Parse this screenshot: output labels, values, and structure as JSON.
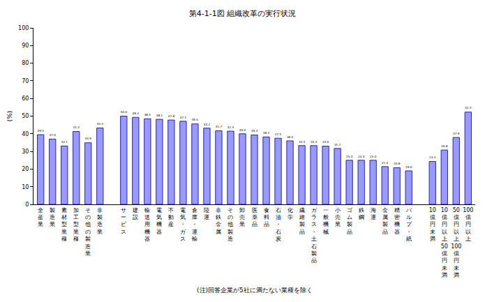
{
  "chart_data": {
    "type": "bar",
    "title": "第4-1-1図 組織改革の実行状況",
    "y_label": "(%)",
    "annotations": [
      "(注)回答企業が5社に満たない業種を除く"
    ],
    "categories": [
      "全産業",
      "製造業",
      "素材型業種",
      "加工型業種",
      "その他の製造業",
      "非製造業",
      null,
      "サービス",
      "建設",
      "輸送用機器",
      "電気機器",
      "不動産",
      "電気・ガス",
      "倉庫・運輸",
      "陸運",
      "非鉄金属",
      "その他製造",
      "卸売業",
      "医薬品",
      "食料品",
      "石油・石炭",
      "化学",
      "繊維製品",
      "ガラス・土石製品",
      "一般機械",
      "小売業",
      "ゴム製品",
      "鉄鋼",
      "海運",
      "金属製品",
      "精密機器",
      "パルプ・紙",
      null,
      "10億円未満",
      "10億円以上50億円未満",
      "50億円以上100億円未満",
      "100億円以上"
    ],
    "values": [
      39.5,
      37.0,
      33.1,
      41.3,
      34.9,
      43.3,
      null,
      50.0,
      49.3,
      48.5,
      48.2,
      47.8,
      47.1,
      45.6,
      43.2,
      41.7,
      41.5,
      40.0,
      39.3,
      38.2,
      37.5,
      36.0,
      33.3,
      33.3,
      33.0,
      31.7,
      25.0,
      25.0,
      25.0,
      21.4,
      20.8,
      19.0,
      null,
      24.3,
      30.8,
      37.9,
      52.3
    ],
    "value_labels": [
      "39.5",
      "37.0",
      "33.1",
      "41.3",
      "34.9",
      "43.3",
      null,
      "50.0",
      "49.3",
      "48.5",
      "48.2",
      "47.8",
      "47.1",
      "45.6",
      "43.2",
      "41.7",
      "41.5",
      "40.0",
      "39.3",
      "38.2",
      "37.5",
      "36.0",
      "33.3",
      "33.3",
      "33.0",
      "31.7",
      "25.0",
      "25.0",
      "25.0",
      "21.4",
      "20.8",
      "19.0",
      null,
      "24.3",
      "30.8",
      "37.9",
      "52.3"
    ],
    "color": "#9999ff",
    "ylim": [
      0,
      100
    ],
    "yticks": [
      0,
      10,
      20,
      30,
      40,
      50,
      60,
      70,
      80,
      90,
      100
    ],
    "grid": false,
    "data_labels": true
  }
}
